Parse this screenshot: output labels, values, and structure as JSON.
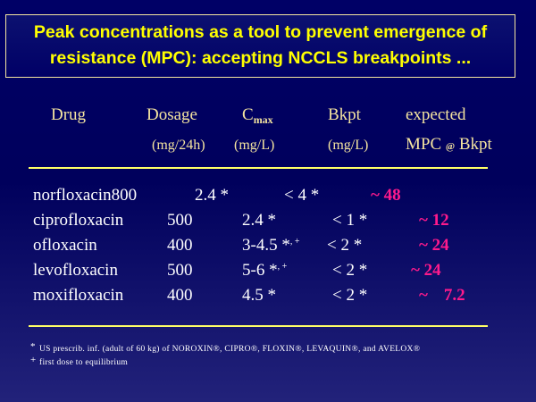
{
  "title": {
    "line1": "Peak concentrations as a tool to prevent emergence of",
    "line2": "resistance (MPC):  accepting NCCLS breakpoints ..."
  },
  "headers": {
    "drug": "Drug",
    "dosage": "Dosage",
    "cmax_c": "C",
    "cmax_sub": "max",
    "bkpt": "Bkpt",
    "expected": "expected",
    "dosage_unit": "(mg/24h)",
    "cmax_unit": "(mg/L)",
    "bkpt_unit": "(mg/L)",
    "mpc": "MPC",
    "mpc_at": "@",
    "mpc_bkpt": "Bkpt"
  },
  "rows": [
    {
      "drug": "norfloxacin",
      "dosage": "800",
      "cmax": "2.4 *",
      "cmax_sup": "",
      "bkpt": "< 4 *",
      "mpc_tilde": "~",
      "mpc_value": "48"
    },
    {
      "drug": "ciprofloxacin",
      "dosage": "500",
      "cmax": "2.4 *",
      "cmax_sup": "",
      "bkpt": "< 1 *",
      "mpc_tilde": "~",
      "mpc_value": "12"
    },
    {
      "drug": "ofloxacin",
      "dosage": "400",
      "cmax": "3-4.5 *",
      "cmax_sup": ", +",
      "bkpt": "< 2 *",
      "mpc_tilde": "~",
      "mpc_value": "24"
    },
    {
      "drug": "levofloxacin",
      "dosage": "500",
      "cmax": "5-6 *",
      "cmax_sup": ", +",
      "bkpt": "< 2 *",
      "mpc_tilde": "~",
      "mpc_value": "24"
    },
    {
      "drug": "moxifloxacin",
      "dosage": "400",
      "cmax": "4.5 *",
      "cmax_sup": "",
      "bkpt": "< 2 *",
      "mpc_tilde": "~",
      "mpc_value": "7.2"
    }
  ],
  "footnotes": [
    {
      "mark": "*",
      "text": "US prescrib. inf.  (adult of 60 kg) of NOROXIN®, CIPRO®, FLOXIN®,  LEVAQUIN®, and AVELOX®"
    },
    {
      "mark": "+",
      "text": "first dose to equilibrium"
    }
  ],
  "colors": {
    "background": "#000066",
    "title_text": "#ffff00",
    "header_text": "#f4e4a0",
    "rule": "#ffff66",
    "mpc_value": "#ff1a8c",
    "body_text": "#ffffff"
  }
}
